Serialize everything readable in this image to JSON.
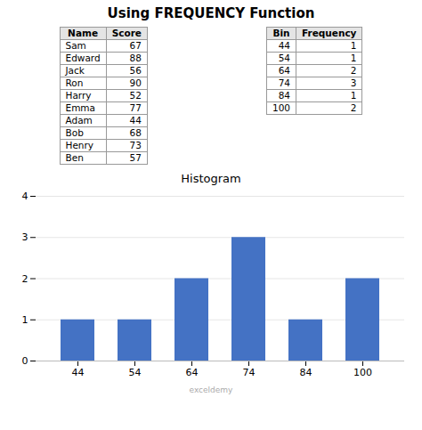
{
  "chart_data": [
    {
      "type": "table",
      "title": "Using FREQUENCY Function",
      "xlabel": "Name",
      "ylabel": "Score",
      "categories": [
        "Sam",
        "Edward",
        "Jack",
        "Ron",
        "Harry",
        "Emma",
        "Adam",
        "Bob",
        "Henry",
        "Ben"
      ],
      "values": [
        67,
        88,
        56,
        90,
        52,
        77,
        44,
        68,
        73,
        57
      ]
    },
    {
      "type": "table",
      "xlabel": "Bin",
      "ylabel": "Frequency",
      "categories": [
        44,
        54,
        64,
        74,
        84,
        100
      ],
      "values": [
        1,
        1,
        2,
        3,
        1,
        2
      ]
    },
    {
      "type": "bar",
      "title": "Histogram",
      "categories": [
        "44",
        "54",
        "64",
        "74",
        "84",
        "100"
      ],
      "values": [
        1,
        1,
        2,
        3,
        1,
        2
      ],
      "color": "#4472C4",
      "ylim": [
        0,
        4
      ],
      "yticks": [
        0,
        1,
        2,
        3,
        4
      ],
      "grid": true,
      "annotations": [
        "exceldemy"
      ]
    }
  ]
}
